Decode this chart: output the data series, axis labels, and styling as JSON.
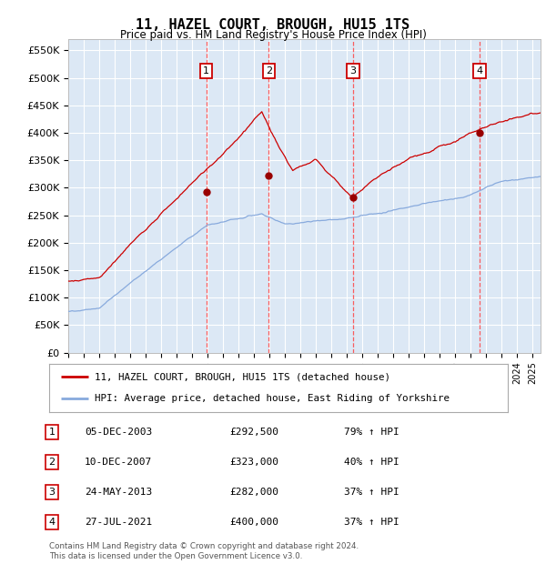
{
  "title": "11, HAZEL COURT, BROUGH, HU15 1TS",
  "subtitle": "Price paid vs. HM Land Registry's House Price Index (HPI)",
  "ylabel_ticks": [
    "£0",
    "£50K",
    "£100K",
    "£150K",
    "£200K",
    "£250K",
    "£300K",
    "£350K",
    "£400K",
    "£450K",
    "£500K",
    "£550K"
  ],
  "ylim": [
    0,
    570000
  ],
  "ytick_vals": [
    0,
    50000,
    100000,
    150000,
    200000,
    250000,
    300000,
    350000,
    400000,
    450000,
    500000,
    550000
  ],
  "sale_dates_num": [
    2003.92,
    2007.94,
    2013.39,
    2021.57
  ],
  "sale_prices": [
    292500,
    323000,
    282000,
    400000
  ],
  "sale_labels": [
    "1",
    "2",
    "3",
    "4"
  ],
  "vline_color": "#ff4444",
  "hpi_line_color": "#88aadd",
  "price_line_color": "#cc0000",
  "bg_color": "#dce8f5",
  "grid_color": "#ffffff",
  "legend_entries": [
    "11, HAZEL COURT, BROUGH, HU15 1TS (detached house)",
    "HPI: Average price, detached house, East Riding of Yorkshire"
  ],
  "table_data": [
    [
      "1",
      "05-DEC-2003",
      "£292,500",
      "79% ↑ HPI"
    ],
    [
      "2",
      "10-DEC-2007",
      "£323,000",
      "40% ↑ HPI"
    ],
    [
      "3",
      "24-MAY-2013",
      "£282,000",
      "37% ↑ HPI"
    ],
    [
      "4",
      "27-JUL-2021",
      "£400,000",
      "37% ↑ HPI"
    ]
  ],
  "footer": "Contains HM Land Registry data © Crown copyright and database right 2024.\nThis data is licensed under the Open Government Licence v3.0.",
  "xmin": 1995.0,
  "xmax": 2025.5
}
